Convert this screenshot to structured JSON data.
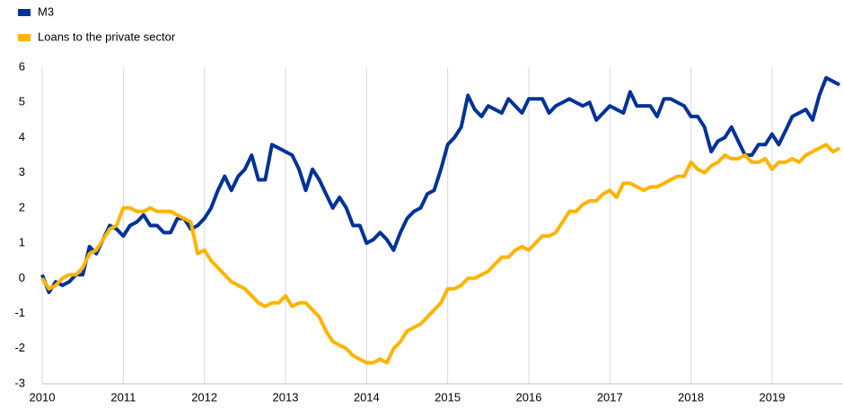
{
  "chart_data": {
    "type": "line",
    "series": [
      {
        "name": "M3",
        "color": "#003299",
        "values": [
          0.1,
          -0.4,
          -0.1,
          -0.2,
          -0.1,
          0.1,
          0.1,
          0.9,
          0.7,
          1.1,
          1.5,
          1.4,
          1.2,
          1.5,
          1.6,
          1.8,
          1.5,
          1.5,
          1.3,
          1.3,
          1.7,
          1.7,
          1.4,
          1.5,
          1.7,
          2.0,
          2.5,
          2.9,
          2.5,
          2.9,
          3.1,
          3.5,
          2.8,
          2.8,
          3.8,
          3.7,
          3.6,
          3.5,
          3.1,
          2.5,
          3.1,
          2.8,
          2.4,
          2.0,
          2.3,
          2.0,
          1.5,
          1.5,
          1.0,
          1.1,
          1.3,
          1.1,
          0.8,
          1.3,
          1.7,
          1.9,
          2.0,
          2.4,
          2.5,
          3.1,
          3.8,
          4.0,
          4.3,
          5.2,
          4.8,
          4.6,
          4.9,
          4.8,
          4.7,
          5.1,
          4.9,
          4.7,
          5.1,
          5.1,
          5.1,
          4.7,
          4.9,
          5.0,
          5.1,
          5.0,
          4.9,
          5.0,
          4.5,
          4.7,
          4.9,
          4.8,
          4.7,
          5.3,
          4.9,
          4.9,
          4.9,
          4.6,
          5.1,
          5.1,
          5.0,
          4.9,
          4.6,
          4.6,
          4.3,
          3.6,
          3.9,
          4.0,
          4.3,
          3.9,
          3.5,
          3.5,
          3.8,
          3.8,
          4.1,
          3.8,
          4.2,
          4.6,
          4.7,
          4.8,
          4.5,
          5.2,
          5.7,
          5.6,
          5.5
        ]
      },
      {
        "name": "Loans to the private sector",
        "color": "#ffb400",
        "values": [
          0.0,
          -0.3,
          -0.2,
          0.0,
          0.1,
          0.1,
          0.3,
          0.7,
          0.8,
          1.1,
          1.4,
          1.5,
          2.0,
          2.0,
          1.9,
          1.9,
          2.0,
          1.9,
          1.9,
          1.9,
          1.8,
          1.7,
          1.6,
          0.7,
          0.8,
          0.5,
          0.3,
          0.1,
          -0.1,
          -0.2,
          -0.3,
          -0.5,
          -0.7,
          -0.8,
          -0.7,
          -0.7,
          -0.5,
          -0.8,
          -0.7,
          -0.7,
          -0.9,
          -1.1,
          -1.5,
          -1.8,
          -1.9,
          -2.0,
          -2.2,
          -2.3,
          -2.4,
          -2.4,
          -2.3,
          -2.4,
          -2.0,
          -1.8,
          -1.5,
          -1.4,
          -1.3,
          -1.1,
          -0.9,
          -0.7,
          -0.3,
          -0.3,
          -0.2,
          0.0,
          0.0,
          0.1,
          0.2,
          0.4,
          0.6,
          0.6,
          0.8,
          0.9,
          0.8,
          1.0,
          1.2,
          1.2,
          1.3,
          1.6,
          1.9,
          1.9,
          2.1,
          2.2,
          2.2,
          2.4,
          2.5,
          2.3,
          2.7,
          2.7,
          2.6,
          2.5,
          2.6,
          2.6,
          2.7,
          2.8,
          2.9,
          2.9,
          3.3,
          3.1,
          3.0,
          3.2,
          3.3,
          3.5,
          3.4,
          3.4,
          3.5,
          3.3,
          3.3,
          3.4,
          3.1,
          3.3,
          3.3,
          3.4,
          3.3,
          3.5,
          3.6,
          3.7,
          3.8,
          3.6,
          3.7
        ]
      }
    ],
    "x": [
      2010,
      2010.083,
      2010.167,
      2010.25,
      2010.333,
      2010.417,
      2010.5,
      2010.583,
      2010.667,
      2010.75,
      2010.833,
      2010.917,
      2011,
      2011.083,
      2011.167,
      2011.25,
      2011.333,
      2011.417,
      2011.5,
      2011.583,
      2011.667,
      2011.75,
      2011.833,
      2011.917,
      2012,
      2012.083,
      2012.167,
      2012.25,
      2012.333,
      2012.417,
      2012.5,
      2012.583,
      2012.667,
      2012.75,
      2012.833,
      2012.917,
      2013,
      2013.083,
      2013.167,
      2013.25,
      2013.333,
      2013.417,
      2013.5,
      2013.583,
      2013.667,
      2013.75,
      2013.833,
      2013.917,
      2014,
      2014.083,
      2014.167,
      2014.25,
      2014.333,
      2014.417,
      2014.5,
      2014.583,
      2014.667,
      2014.75,
      2014.833,
      2014.917,
      2015,
      2015.083,
      2015.167,
      2015.25,
      2015.333,
      2015.417,
      2015.5,
      2015.583,
      2015.667,
      2015.75,
      2015.833,
      2015.917,
      2016,
      2016.083,
      2016.167,
      2016.25,
      2016.333,
      2016.417,
      2016.5,
      2016.583,
      2016.667,
      2016.75,
      2016.833,
      2016.917,
      2017,
      2017.083,
      2017.167,
      2017.25,
      2017.333,
      2017.417,
      2017.5,
      2017.583,
      2017.667,
      2017.75,
      2017.833,
      2017.917,
      2018,
      2018.083,
      2018.167,
      2018.25,
      2018.333,
      2018.417,
      2018.5,
      2018.583,
      2018.667,
      2018.75,
      2018.833,
      2018.917,
      2019,
      2019.083,
      2019.167,
      2019.25,
      2019.333,
      2019.417,
      2019.5,
      2019.583,
      2019.667,
      2019.75,
      2019.833
    ],
    "xlim": [
      2010,
      2019.875
    ],
    "xticks": [
      2010,
      2011,
      2012,
      2013,
      2014,
      2015,
      2016,
      2017,
      2018,
      2019
    ],
    "ylim": [
      -3,
      6
    ],
    "yticks": [
      -3,
      -2,
      -1,
      0,
      1,
      2,
      3,
      4,
      5,
      6
    ],
    "grid": "x",
    "legend": "top-left"
  }
}
